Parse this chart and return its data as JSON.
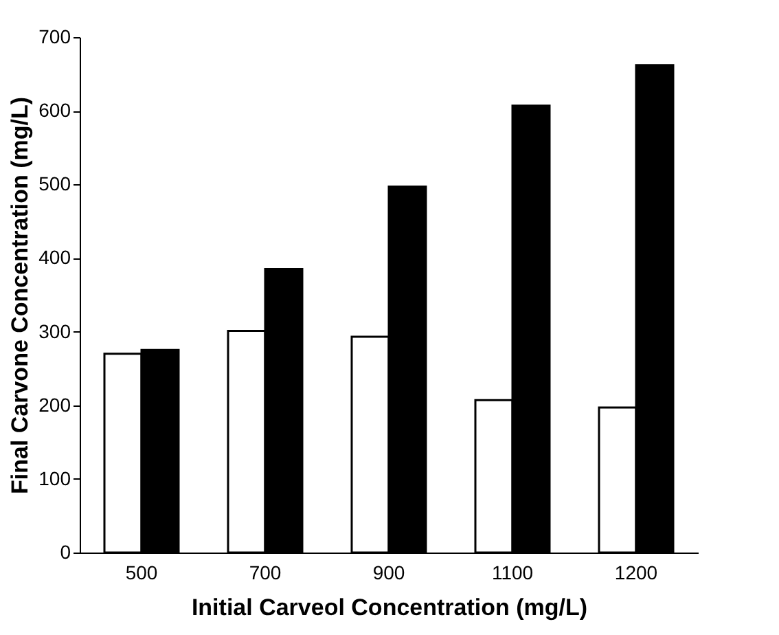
{
  "chart_data": {
    "type": "bar",
    "xlabel": "Initial Carveol Concentration (mg/L)",
    "ylabel": "Final Carvone Concentration (mg/L)",
    "categories": [
      "500",
      "700",
      "900",
      "1100",
      "1200"
    ],
    "series": [
      {
        "color": "#ffffff",
        "values": [
          270,
          301,
          293,
          207,
          197
        ]
      },
      {
        "color": "#000000",
        "values": [
          275,
          385,
          497,
          607,
          662
        ]
      }
    ],
    "ylim": [
      0,
      700
    ],
    "yticks": [
      0,
      100,
      200,
      300,
      400,
      500,
      600,
      700
    ],
    "grid": false,
    "legend": false
  }
}
